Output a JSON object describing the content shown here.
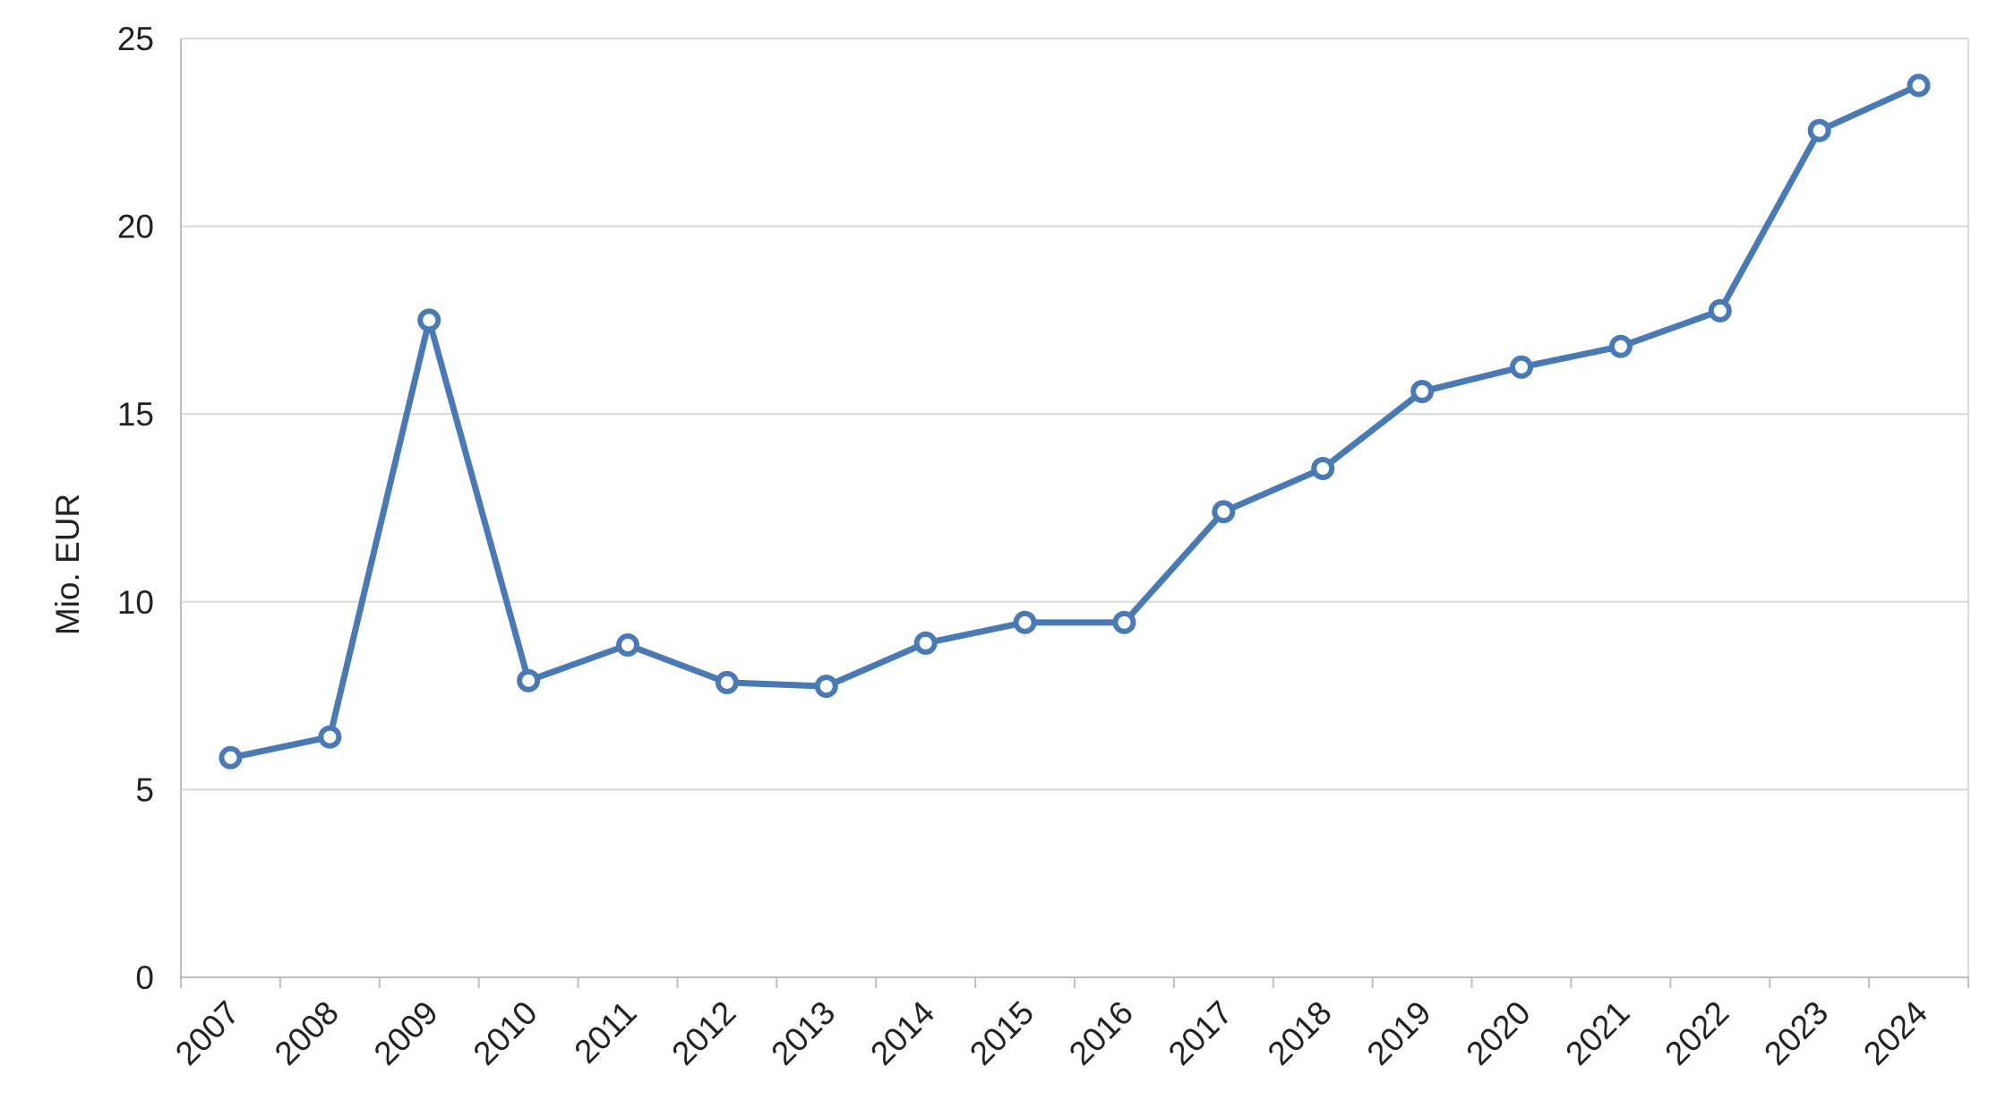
{
  "chart_data": {
    "type": "line",
    "title": "",
    "xlabel": "",
    "ylabel": "Mio. EUR",
    "categories": [
      "2007",
      "2008",
      "2009",
      "2010",
      "2011",
      "2012",
      "2013",
      "2014",
      "2015",
      "2016",
      "2017",
      "2018",
      "2019",
      "2020",
      "2021",
      "2022",
      "2023",
      "2024"
    ],
    "series": [
      {
        "values": [
          5.85,
          6.4,
          17.5,
          7.9,
          8.85,
          7.85,
          7.75,
          8.9,
          9.45,
          9.45,
          12.4,
          13.55,
          15.6,
          16.25,
          16.8,
          17.75,
          22.55,
          23.75
        ]
      }
    ],
    "ylim": [
      0,
      25
    ],
    "yticks": [
      0,
      5,
      10,
      15,
      20,
      25
    ],
    "grid": "horizontal",
    "legend": "none",
    "colors": {
      "line": "#4a7ab5",
      "marker_fill": "#ffffff",
      "grid": "#d9d9d9",
      "axis": "#bfbfbf"
    }
  }
}
